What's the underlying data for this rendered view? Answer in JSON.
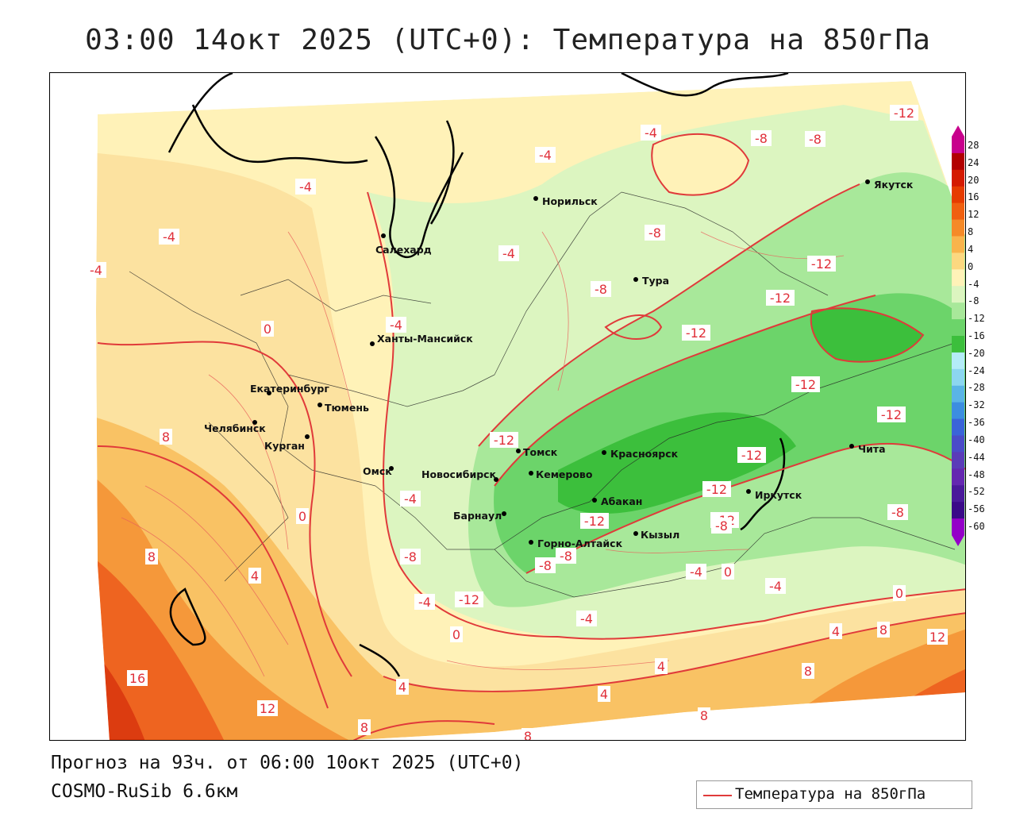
{
  "title": "03:00 14окт 2025 (UTC+0): Температура на 850гПа",
  "footer": {
    "forecast": "Прогноз на 93ч. от 06:00 10окт 2025 (UTC+0)",
    "model": "COSMO-RuSib 6.6км"
  },
  "legend": {
    "label": "Температура на 850гПа",
    "line_color": "#e03a3a"
  },
  "colorbar": {
    "levels": [
      "28",
      "24",
      "20",
      "16",
      "12",
      "8",
      "4",
      "0",
      "-4",
      "-8",
      "-12",
      "-16",
      "-20",
      "-24",
      "-28",
      "-32",
      "-36",
      "-40",
      "-44",
      "-48",
      "-52",
      "-56",
      "-60"
    ],
    "colors": [
      "#c8008c",
      "#b20000",
      "#d41a00",
      "#e63c00",
      "#f06010",
      "#f58a28",
      "#f9b44c",
      "#fcd880",
      "#fff2b8",
      "#dcf5c0",
      "#a8e89a",
      "#6cd46a",
      "#3cbf3c",
      "#b4ecf8",
      "#8cd6f0",
      "#5ab4e6",
      "#3c8ee0",
      "#3a64d8",
      "#4a4cc8",
      "#5a3cb8",
      "#6428b0",
      "#4a1a9a",
      "#3a0a88",
      "#9400c8"
    ]
  },
  "cities": [
    {
      "name": "Норильск"
    },
    {
      "name": "Якутск"
    },
    {
      "name": "Салехард"
    },
    {
      "name": "Тура"
    },
    {
      "name": "Ханты-Мансийск"
    },
    {
      "name": "Екатеринбург"
    },
    {
      "name": "Тюмень"
    },
    {
      "name": "Челябинск"
    },
    {
      "name": "Курган"
    },
    {
      "name": "Омск"
    },
    {
      "name": "Новосибирск"
    },
    {
      "name": "Томск"
    },
    {
      "name": "Кемерово"
    },
    {
      "name": "Красноярск"
    },
    {
      "name": "Барнаул"
    },
    {
      "name": "Абакан"
    },
    {
      "name": "Кызыл"
    },
    {
      "name": "Горно-Алтайск"
    },
    {
      "name": "Иркутск"
    },
    {
      "name": "Чита"
    }
  ],
  "contour_labels": [
    "-4",
    "-4",
    "-8",
    "-12",
    "-4",
    "-4",
    "-8",
    "-4",
    "-8",
    "-12",
    "-12",
    "-8",
    "-12",
    "-4",
    "-12",
    "-12",
    "-12",
    "0",
    "-4",
    "-12",
    "-12",
    "-12",
    "-8",
    "8",
    "-4",
    "-12",
    "-8",
    "0",
    "-8",
    "-4",
    "8",
    "4",
    "-8",
    "-12",
    "-4",
    "0",
    "-4",
    "-4",
    "0",
    "4",
    "0",
    "4",
    "8",
    "12",
    "16",
    "12",
    "8",
    "4",
    "4",
    "8",
    "8",
    "8",
    "-8"
  ]
}
